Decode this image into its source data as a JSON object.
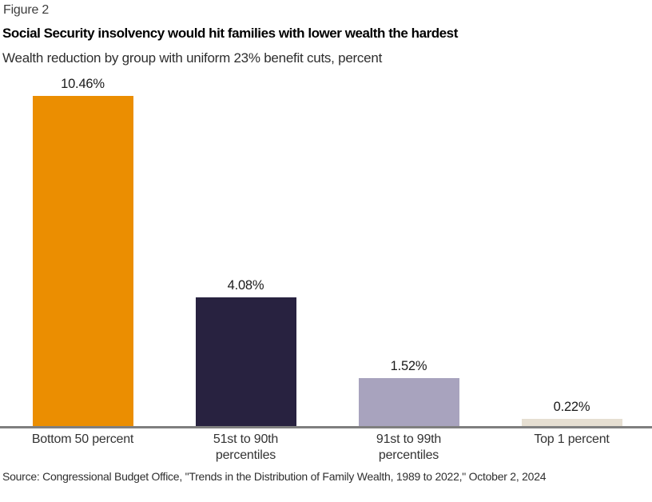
{
  "figure_label": "Figure 2",
  "source_note": "Source: Congressional Budget Office, \"Trends in the Distribution of Family Wealth, 1989 to 2022,\" October 2, 2024",
  "colors": {
    "background": "#FFFFFF",
    "axis_line": "#7F7F7F",
    "title_text": "#000000",
    "body_text": "#333333",
    "bar_orange": "#EB8E01",
    "bar_navy": "#282240",
    "bar_lavender": "#A8A3BE",
    "bar_beige": "#E6DFD2"
  },
  "chart_data": {
    "type": "bar",
    "title": "Social Security insolvency would hit families with lower wealth the hardest",
    "subtitle": "Wealth reduction by group with uniform 23% benefit cuts, percent",
    "categories": [
      "Bottom 50 percent",
      "51st to 90th percentiles",
      "91st to 99th percentiles",
      "Top 1 percent"
    ],
    "tick_lines": [
      [
        "Bottom 50 percent"
      ],
      [
        "51st to 90th",
        "percentiles"
      ],
      [
        "91st to 99th",
        "percentiles"
      ],
      [
        "Top 1 percent"
      ]
    ],
    "values": [
      10.46,
      4.08,
      1.52,
      0.22
    ],
    "value_labels": [
      "10.46%",
      "4.08%",
      "1.52%",
      "0.22%"
    ],
    "bar_colors": [
      "#EB8E01",
      "#282240",
      "#A8A3BE",
      "#E6DFD2"
    ],
    "xlabel": "",
    "ylabel": "",
    "ylim": [
      0,
      10.46
    ],
    "grid": false,
    "legend": false,
    "axis_line_color": "#7F7F7F"
  }
}
